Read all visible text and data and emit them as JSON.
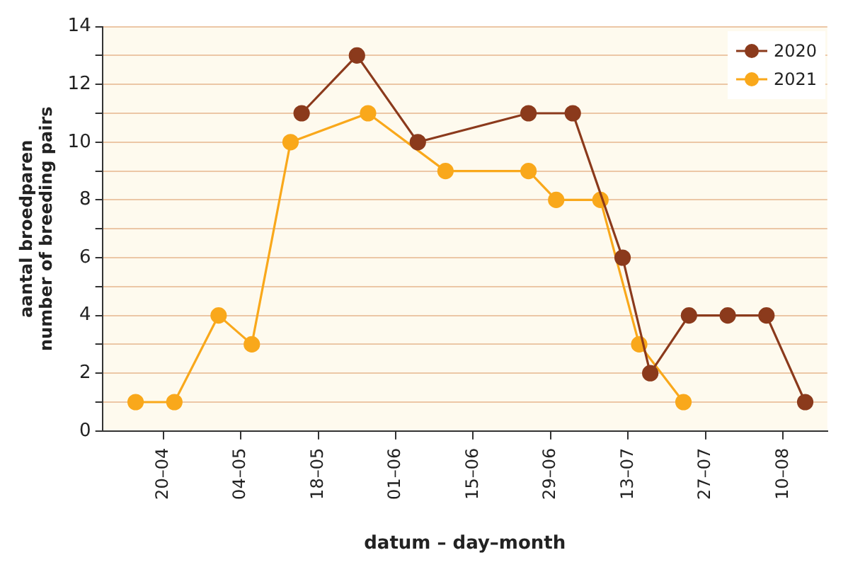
{
  "chart_data": {
    "type": "line",
    "xlabel": "datum – day–month",
    "ylabel": "aantal broedparen\nnumber of breeding pairs",
    "xlim": [
      "--04-09",
      "--08-18"
    ],
    "xticks": [
      {
        "value": "--04-20",
        "label": "20–04"
      },
      {
        "value": "--05-04",
        "label": "04–05"
      },
      {
        "value": "--05-18",
        "label": "18–05"
      },
      {
        "value": "--06-01",
        "label": "01–06"
      },
      {
        "value": "--06-15",
        "label": "15–06"
      },
      {
        "value": "--06-29",
        "label": "29–06"
      },
      {
        "value": "--07-13",
        "label": "13–07"
      },
      {
        "value": "--07-27",
        "label": "27–07"
      },
      {
        "value": "--08-10",
        "label": "10–08"
      }
    ],
    "ylim": [
      0,
      14
    ],
    "yticks": [
      0,
      {
        "value": 1,
        "label": null
      },
      2,
      {
        "value": 3,
        "label": null
      },
      4,
      {
        "value": 5,
        "label": null
      },
      6,
      {
        "value": 7,
        "label": null
      },
      8,
      {
        "value": 9,
        "label": null
      },
      10,
      {
        "value": 11,
        "label": null
      },
      12,
      {
        "value": 13,
        "label": null
      },
      14
    ],
    "grid": "y",
    "legend": "top right",
    "marker": "circle",
    "line_style": "solid",
    "series": [
      {
        "name": "2020",
        "color": "#8b3a1c",
        "x": [
          "--05-15",
          "--05-25",
          "--06-05",
          "--06-25",
          "--07-03",
          "--07-12",
          "--07-17",
          "--07-24",
          "--07-31",
          "--08-07",
          "--08-14"
        ],
        "values": [
          11,
          13,
          10,
          11,
          11,
          6,
          2,
          4,
          4,
          4,
          1
        ]
      },
      {
        "name": "2021",
        "color": "#f9a81b",
        "x": [
          "--04-15",
          "--04-22",
          "--04-30",
          "--05-06",
          "--05-13",
          "--05-27",
          "--06-10",
          "--06-25",
          "--06-30",
          "--07-08",
          "--07-15",
          "--07-23"
        ],
        "values": [
          1,
          1,
          4,
          3,
          10,
          11,
          9,
          9,
          8,
          8,
          3,
          1
        ]
      }
    ]
  }
}
